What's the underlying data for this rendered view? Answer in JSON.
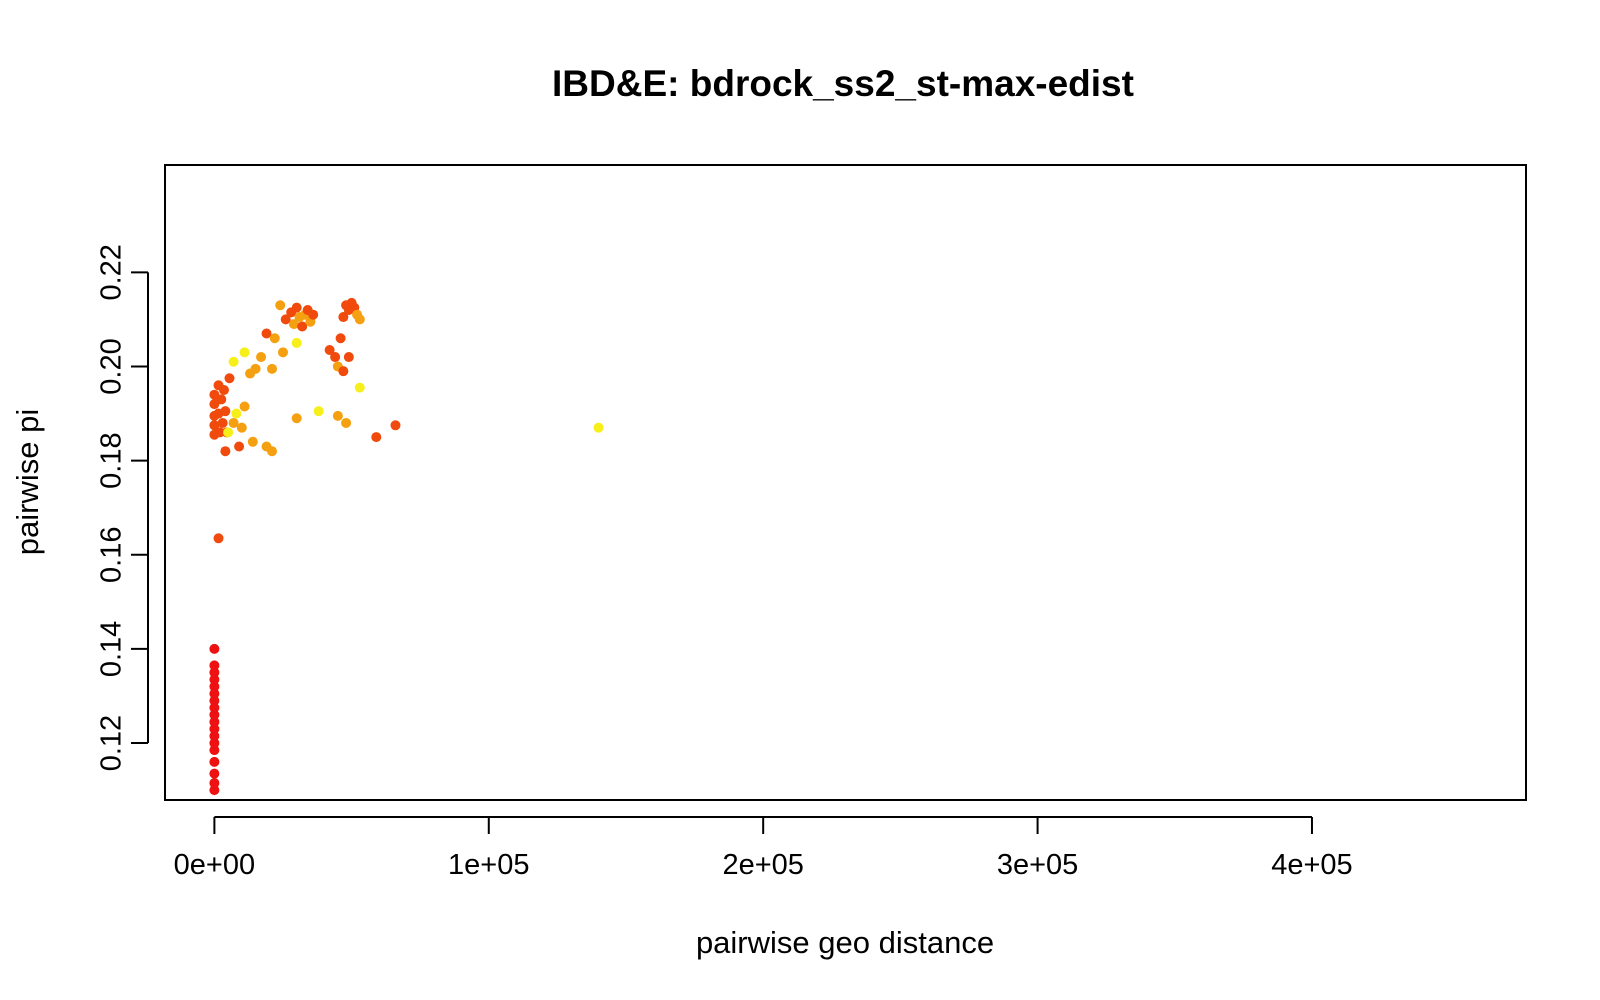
{
  "chart_data": {
    "type": "scatter",
    "title": "IBD&E: bdrock_ss2_st-max-edist",
    "xlabel": "pairwise geo distance",
    "ylabel": "pairwise pi",
    "xlim": [
      -18000,
      478000
    ],
    "ylim": [
      0.1079,
      0.2428
    ],
    "xticks": [
      0,
      100000,
      200000,
      300000,
      400000
    ],
    "xtick_labels": [
      "0e+00",
      "1e+05",
      "2e+05",
      "3e+05",
      "4e+05"
    ],
    "yticks": [
      0.12,
      0.14,
      0.16,
      0.18,
      0.2,
      0.22
    ],
    "ytick_labels": [
      "0.12",
      "0.14",
      "0.16",
      "0.18",
      "0.20",
      "0.22"
    ],
    "grid": false,
    "legend": "none",
    "colors": {
      "red": "#ee1111",
      "red_orange": "#f04a0c",
      "orange": "#f5a010",
      "yellow": "#f7ef1a"
    },
    "points": [
      {
        "x": 0,
        "y": 0.11,
        "c": "red"
      },
      {
        "x": 0,
        "y": 0.1115,
        "c": "red"
      },
      {
        "x": 0,
        "y": 0.1135,
        "c": "red"
      },
      {
        "x": 0,
        "y": 0.116,
        "c": "red"
      },
      {
        "x": 0,
        "y": 0.1185,
        "c": "red"
      },
      {
        "x": 0,
        "y": 0.12,
        "c": "red"
      },
      {
        "x": 0,
        "y": 0.1215,
        "c": "red"
      },
      {
        "x": 0,
        "y": 0.123,
        "c": "red"
      },
      {
        "x": 0,
        "y": 0.1245,
        "c": "red"
      },
      {
        "x": 0,
        "y": 0.126,
        "c": "red"
      },
      {
        "x": 0,
        "y": 0.1275,
        "c": "red"
      },
      {
        "x": 0,
        "y": 0.129,
        "c": "red"
      },
      {
        "x": 0,
        "y": 0.1305,
        "c": "red"
      },
      {
        "x": 0,
        "y": 0.132,
        "c": "red"
      },
      {
        "x": 0,
        "y": 0.1335,
        "c": "red"
      },
      {
        "x": 0,
        "y": 0.135,
        "c": "red"
      },
      {
        "x": 0,
        "y": 0.1365,
        "c": "red"
      },
      {
        "x": 0,
        "y": 0.14,
        "c": "red"
      },
      {
        "x": 1500,
        "y": 0.1635,
        "c": "red_orange"
      },
      {
        "x": 4000,
        "y": 0.182,
        "c": "red_orange"
      },
      {
        "x": 9000,
        "y": 0.183,
        "c": "red_orange"
      },
      {
        "x": 0,
        "y": 0.1855,
        "c": "red_orange"
      },
      {
        "x": 2000,
        "y": 0.186,
        "c": "red_orange"
      },
      {
        "x": 4500,
        "y": 0.186,
        "c": "red_orange"
      },
      {
        "x": 0,
        "y": 0.1875,
        "c": "red_orange"
      },
      {
        "x": 3000,
        "y": 0.188,
        "c": "red_orange"
      },
      {
        "x": 0,
        "y": 0.1895,
        "c": "red_orange"
      },
      {
        "x": 1500,
        "y": 0.19,
        "c": "red_orange"
      },
      {
        "x": 4000,
        "y": 0.1905,
        "c": "red_orange"
      },
      {
        "x": 0,
        "y": 0.192,
        "c": "red_orange"
      },
      {
        "x": 2500,
        "y": 0.193,
        "c": "red_orange"
      },
      {
        "x": 0,
        "y": 0.194,
        "c": "red_orange"
      },
      {
        "x": 3500,
        "y": 0.195,
        "c": "red_orange"
      },
      {
        "x": 1500,
        "y": 0.196,
        "c": "red_orange"
      },
      {
        "x": 5500,
        "y": 0.1975,
        "c": "red_orange"
      },
      {
        "x": 7000,
        "y": 0.188,
        "c": "orange"
      },
      {
        "x": 10000,
        "y": 0.187,
        "c": "orange"
      },
      {
        "x": 14000,
        "y": 0.184,
        "c": "orange"
      },
      {
        "x": 19000,
        "y": 0.183,
        "c": "orange"
      },
      {
        "x": 21000,
        "y": 0.182,
        "c": "orange"
      },
      {
        "x": 11000,
        "y": 0.1915,
        "c": "orange"
      },
      {
        "x": 13000,
        "y": 0.1985,
        "c": "orange"
      },
      {
        "x": 15000,
        "y": 0.1995,
        "c": "orange"
      },
      {
        "x": 17000,
        "y": 0.202,
        "c": "orange"
      },
      {
        "x": 21000,
        "y": 0.1995,
        "c": "orange"
      },
      {
        "x": 19000,
        "y": 0.207,
        "c": "red_orange"
      },
      {
        "x": 22000,
        "y": 0.206,
        "c": "orange"
      },
      {
        "x": 24000,
        "y": 0.213,
        "c": "orange"
      },
      {
        "x": 26000,
        "y": 0.21,
        "c": "red_orange"
      },
      {
        "x": 28000,
        "y": 0.2115,
        "c": "red_orange"
      },
      {
        "x": 29000,
        "y": 0.209,
        "c": "orange"
      },
      {
        "x": 30000,
        "y": 0.2125,
        "c": "red_orange"
      },
      {
        "x": 31000,
        "y": 0.2105,
        "c": "orange"
      },
      {
        "x": 32000,
        "y": 0.2085,
        "c": "red_orange"
      },
      {
        "x": 33000,
        "y": 0.211,
        "c": "orange"
      },
      {
        "x": 34000,
        "y": 0.212,
        "c": "red_orange"
      },
      {
        "x": 35000,
        "y": 0.2095,
        "c": "orange"
      },
      {
        "x": 36000,
        "y": 0.211,
        "c": "red_orange"
      },
      {
        "x": 30000,
        "y": 0.205,
        "c": "yellow"
      },
      {
        "x": 25000,
        "y": 0.203,
        "c": "orange"
      },
      {
        "x": 30000,
        "y": 0.189,
        "c": "orange"
      },
      {
        "x": 38000,
        "y": 0.1905,
        "c": "yellow"
      },
      {
        "x": 45000,
        "y": 0.1895,
        "c": "orange"
      },
      {
        "x": 48000,
        "y": 0.188,
        "c": "orange"
      },
      {
        "x": 42000,
        "y": 0.2035,
        "c": "red_orange"
      },
      {
        "x": 44000,
        "y": 0.202,
        "c": "red_orange"
      },
      {
        "x": 45000,
        "y": 0.2,
        "c": "orange"
      },
      {
        "x": 46000,
        "y": 0.206,
        "c": "red_orange"
      },
      {
        "x": 47000,
        "y": 0.199,
        "c": "red_orange"
      },
      {
        "x": 49000,
        "y": 0.202,
        "c": "red_orange"
      },
      {
        "x": 47000,
        "y": 0.2105,
        "c": "red_orange"
      },
      {
        "x": 48000,
        "y": 0.213,
        "c": "red_orange"
      },
      {
        "x": 49000,
        "y": 0.212,
        "c": "red_orange"
      },
      {
        "x": 50000,
        "y": 0.2135,
        "c": "red_orange"
      },
      {
        "x": 51000,
        "y": 0.2125,
        "c": "red_orange"
      },
      {
        "x": 52000,
        "y": 0.211,
        "c": "orange"
      },
      {
        "x": 53000,
        "y": 0.21,
        "c": "orange"
      },
      {
        "x": 53000,
        "y": 0.1955,
        "c": "yellow"
      },
      {
        "x": 59000,
        "y": 0.185,
        "c": "red_orange"
      },
      {
        "x": 66000,
        "y": 0.1875,
        "c": "red_orange"
      },
      {
        "x": 7000,
        "y": 0.201,
        "c": "yellow"
      },
      {
        "x": 11000,
        "y": 0.203,
        "c": "yellow"
      },
      {
        "x": 5000,
        "y": 0.186,
        "c": "yellow"
      },
      {
        "x": 8000,
        "y": 0.19,
        "c": "yellow"
      },
      {
        "x": 140000,
        "y": 0.187,
        "c": "yellow"
      }
    ]
  }
}
